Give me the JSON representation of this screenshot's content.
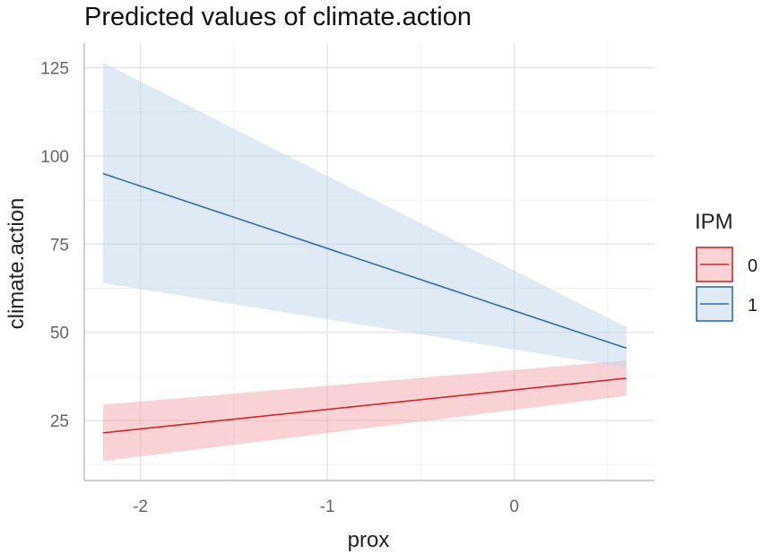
{
  "chart_data": {
    "type": "line",
    "title": "Predicted values of climate.action",
    "xlabel": "prox",
    "ylabel": "climate.action",
    "xlim": [
      -2.3,
      0.75
    ],
    "ylim": [
      8,
      132
    ],
    "x_ticks": [
      -2,
      -1,
      0
    ],
    "x_tick_labels": [
      "-2",
      "-1",
      "0"
    ],
    "y_ticks": [
      25,
      50,
      75,
      100,
      125
    ],
    "y_tick_labels": [
      "25",
      "50",
      "75",
      "100",
      "125"
    ],
    "grid": true,
    "legend": {
      "title": "IPM",
      "position": "right"
    },
    "series": [
      {
        "name": "0",
        "color": "#CC2A2A",
        "fill": "#F4A6AC",
        "x": [
          -2.2,
          0.6
        ],
        "y": [
          21.5,
          37.0
        ],
        "lower": [
          13.5,
          32.0
        ],
        "upper": [
          29.5,
          42.0
        ]
      },
      {
        "name": "1",
        "color": "#2F6FA8",
        "fill": "#BFD5E9",
        "x": [
          -2.2,
          0.6
        ],
        "y": [
          95.0,
          45.5
        ],
        "lower": [
          64.0,
          40.0
        ],
        "upper": [
          126.5,
          51.5
        ]
      }
    ]
  }
}
